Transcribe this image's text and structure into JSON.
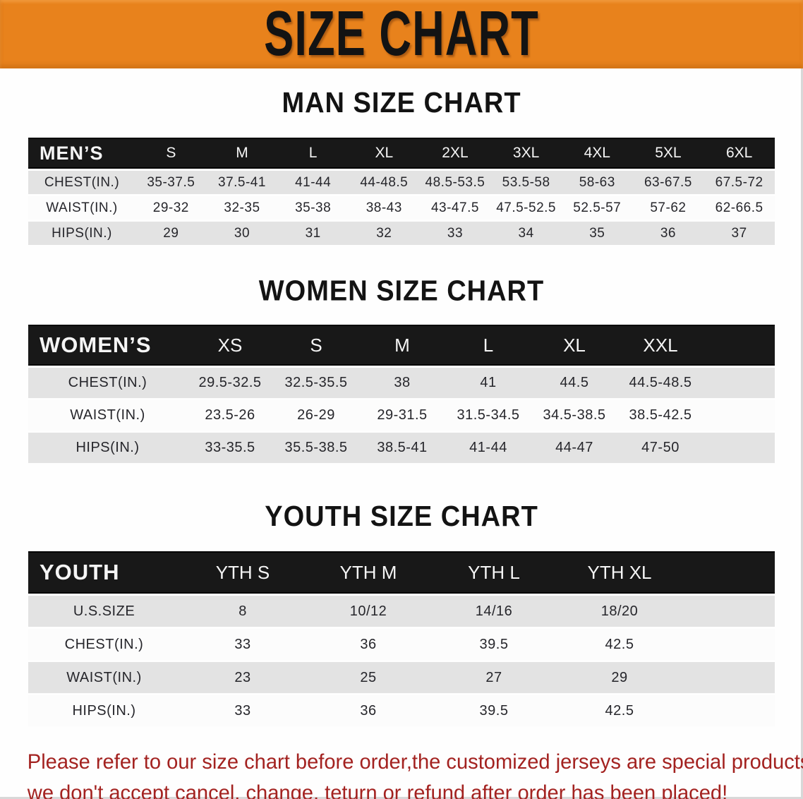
{
  "banner": {
    "title": "SIZE CHART",
    "background_color": "#e8821c",
    "text_color": "#131313"
  },
  "chart_data": [
    {
      "type": "table",
      "name": "men-size-chart",
      "title": "MAN SIZE CHART",
      "header_label": "MEN’S",
      "columns": [
        "S",
        "M",
        "L",
        "XL",
        "2XL",
        "3XL",
        "4XL",
        "5XL",
        "6XL"
      ],
      "rows": [
        {
          "label": "CHEST(IN.)",
          "values": [
            "35-37.5",
            "37.5-41",
            "41-44",
            "44-48.5",
            "48.5-53.5",
            "53.5-58",
            "58-63",
            "63-67.5",
            "67.5-72"
          ]
        },
        {
          "label": "WAIST(IN.)",
          "values": [
            "29-32",
            "32-35",
            "35-38",
            "38-43",
            "43-47.5",
            "47.5-52.5",
            "52.5-57",
            "57-62",
            "62-66.5"
          ]
        },
        {
          "label": "HIPS(IN.)",
          "values": [
            "29",
            "30",
            "31",
            "32",
            "33",
            "34",
            "35",
            "36",
            "37"
          ]
        }
      ]
    },
    {
      "type": "table",
      "name": "women-size-chart",
      "title": "WOMEN SIZE CHART",
      "header_label": "WOMEN’S",
      "columns": [
        "XS",
        "S",
        "M",
        "L",
        "XL",
        "XXL"
      ],
      "rows": [
        {
          "label": "CHEST(IN.)",
          "values": [
            "29.5-32.5",
            "32.5-35.5",
            "38",
            "41",
            "44.5",
            "44.5-48.5"
          ]
        },
        {
          "label": "WAIST(IN.)",
          "values": [
            "23.5-26",
            "26-29",
            "29-31.5",
            "31.5-34.5",
            "34.5-38.5",
            "38.5-42.5"
          ]
        },
        {
          "label": "HIPS(IN.)",
          "values": [
            "33-35.5",
            "35.5-38.5",
            "38.5-41",
            "41-44",
            "44-47",
            "47-50"
          ]
        }
      ]
    },
    {
      "type": "table",
      "name": "youth-size-chart",
      "title": "YOUTH SIZE CHART",
      "header_label": "YOUTH",
      "columns": [
        "YTH S",
        "YTH M",
        "YTH L",
        "YTH XL"
      ],
      "rows": [
        {
          "label": "U.S.SIZE",
          "values": [
            "8",
            "10/12",
            "14/16",
            "18/20"
          ]
        },
        {
          "label": "CHEST(IN.)",
          "values": [
            "33",
            "36",
            "39.5",
            "42.5"
          ]
        },
        {
          "label": "WAIST(IN.)",
          "values": [
            "23",
            "25",
            "27",
            "29"
          ]
        },
        {
          "label": "HIPS(IN.)",
          "values": [
            "33",
            "36",
            "39.5",
            "42.5"
          ]
        }
      ]
    }
  ],
  "table_colors": {
    "header_bar": "#181818",
    "header_text": "#f5f5f5",
    "row_gray": "#e3e3e3",
    "row_white": "#fcfcfc"
  },
  "disclaimer": {
    "lines": [
      "Please refer to our size chart before order,the customized jerseys are special products,",
      "we don't accept cancel, change, teturn or refund after order has been placed!"
    ],
    "text_color": "#a32220"
  }
}
